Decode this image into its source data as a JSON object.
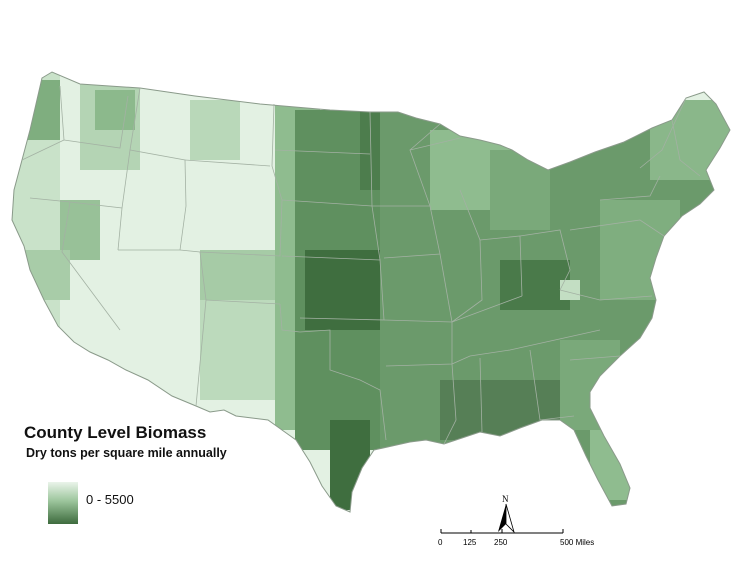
{
  "map": {
    "subject": "contiguous-united-states",
    "colors": {
      "low": "#e3f1e3",
      "mid": "#8fbc8f",
      "high": "#3f6e3f",
      "state_border": "#9aa89a",
      "background": "#ffffff"
    }
  },
  "legend": {
    "title": "County Level Biomass",
    "subtitle": "Dry tons per square mile annually",
    "range_label": "0 - 5500"
  },
  "north_arrow": {
    "label": "N"
  },
  "scale_bar": {
    "ticks": [
      "0",
      "125",
      "250",
      "500 Miles"
    ]
  }
}
